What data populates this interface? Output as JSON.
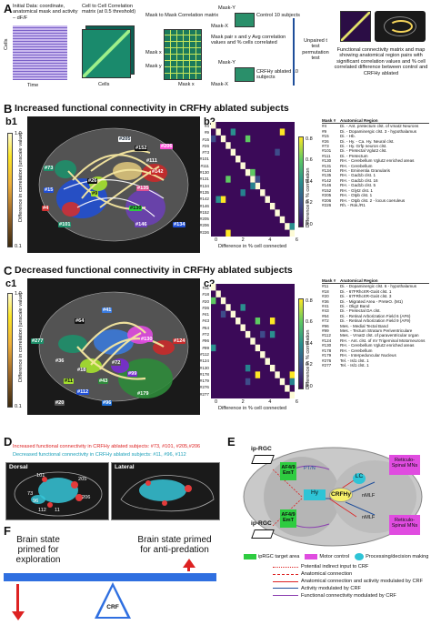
{
  "panelA": {
    "letter": "A",
    "step1": "Initial Data: coordinate, anatomical mask and activity – dF/F",
    "step2": "Cell to Cell Correlation matrix (at 0.5 threshold)",
    "step3": "Mask to Mask Correlation matrix",
    "step4": "Mask pair x and y Avg correlation values and % cells correlated",
    "step5": "Unpaired t test permutation test",
    "control": "Control 10 subjects",
    "ablated": "CRFHy ablated 10 subjects",
    "result": "Functional connectivity matrix and map showing anatomical region pairs with significant correlation values and % cell correlated difference between control and CRFHy ablated",
    "axis_cells": "Cells",
    "axis_time": "Time",
    "mask_x": "Mask x",
    "mask_y": "Mask y",
    "maskX": "Mask-X",
    "maskY": "Mask-Y"
  },
  "panelB": {
    "letter": "B",
    "title": "Increased functional connectivity in CRFHy ablated subjects",
    "b1": "b1",
    "b2": "b2",
    "cbar_top": "1.0",
    "cbar_bot": "0.1",
    "cbar_label": "Difference in correlation (unscale value)",
    "roi": [
      "#205",
      "#152",
      "#206",
      "#73",
      "#111",
      "#142",
      "#26",
      "#15",
      "#9",
      "#135",
      "#4",
      "#130",
      "#101",
      "#146",
      "#134"
    ],
    "heat_xlabel": "Difference in % cell connected",
    "heat_ylabel": "Difference in % correlation",
    "heat_ticks_x": [
      "0",
      "2",
      "4",
      "6"
    ],
    "heat_ticks_y": [
      "0.8",
      "0.6",
      "0.4",
      "0.2",
      "0.0"
    ],
    "row_labels": [
      "#4",
      "#9",
      "#15",
      "#26",
      "#73",
      "#101",
      "#111",
      "#130",
      "#131",
      "#134",
      "#135",
      "#142",
      "#146",
      "#152",
      "#205",
      "#206",
      "#226"
    ],
    "table_header_k": "Mask #",
    "table_header_v": "Anatomical Region",
    "table": [
      [
        "#4",
        "Di. - Ant. pretectum clst. of vmat2 Neurons"
      ],
      [
        "#9",
        "Di. - Dopaminergic clst. 3 - hypothalamus"
      ],
      [
        "#15",
        "Di. - Hb."
      ],
      [
        "#26",
        "Di. - Hy. - Ca. Hy. Neural clst."
      ],
      [
        "#73",
        "Di. - Hy. Grfp neuron clst."
      ],
      [
        "#101",
        "Di. - Pretectal Vglut2 clst."
      ],
      [
        "#111",
        "Di. - Pretectum"
      ],
      [
        "#130",
        "RH. - Cerebellum Vglut2 enriched areas"
      ],
      [
        "#131",
        "RH. - Cerebellum"
      ],
      [
        "#134",
        "RH. - Eminentia Granularis"
      ],
      [
        "#135",
        "RH. - Gad1b clst. 1"
      ],
      [
        "#142",
        "RH. - Gad1b clst. 16"
      ],
      [
        "#146",
        "RH. - Gad1b clst. 5"
      ],
      [
        "#152",
        "RH. - Glyt2 clst. 1"
      ],
      [
        "#205",
        "RH. - Otpb clst. 1"
      ],
      [
        "#206",
        "RH. - Otpb clst. 2 - locus coeruleus"
      ],
      [
        "#226",
        "Rh. - Rok./R1"
      ]
    ]
  },
  "panelC": {
    "letter": "C",
    "title": "Decreased functional connectivity in CRFHy ablated subjects",
    "c1": "c1",
    "c2": "c2",
    "roi": [
      "#41",
      "#64",
      "#130",
      "#124",
      "#277",
      "#36",
      "#18",
      "#72",
      "#99",
      "#43",
      "#11",
      "#112",
      "#179",
      "#96",
      "#20"
    ],
    "row_labels": [
      "#11",
      "#18",
      "#20",
      "#36",
      "#41",
      "#43",
      "#64",
      "#72",
      "#96",
      "#99",
      "#112",
      "#124",
      "#130",
      "#178",
      "#179",
      "#276",
      "#277"
    ],
    "table": [
      [
        "#11",
        "Di. - Dopaminergic clst. 6 - hypothalamus"
      ],
      [
        "#18",
        "Di. - 67FRhcrtR-Gal4 clst. 1"
      ],
      [
        "#20",
        "Di. - 67FRhcrtR-Gal4 clst. 3"
      ],
      [
        "#36",
        "Di. - Migrated Area - PreteO. (M1)"
      ],
      [
        "#41",
        "Di. - Olig2 Band"
      ],
      [
        "#43",
        "Di. - Pretectal DA clst."
      ],
      [
        "#64",
        "Di. - Retinal Arborization Field 6 (AF6)"
      ],
      [
        "#72",
        "Di. - Retinal Arborization Field 9 (AF9)"
      ],
      [
        "#96",
        "Mes. - Medial Tectal Band"
      ],
      [
        "#99",
        "Mes. - Tectum Stratum Periventriculare"
      ],
      [
        "#112",
        "Mes. - Vmat2 clst. of paraventricular organ"
      ],
      [
        "#124",
        "RH. - Ant. clst. of nV Trigeminal Motorneurons"
      ],
      [
        "#130",
        "RH. - Cerebellum Vglut2 enriched areas"
      ],
      [
        "#178",
        "RH. - Cerebellum"
      ],
      [
        "#179",
        "RH. - Interpeduncular Nucleus"
      ],
      [
        "#276",
        "Tel. - Isl1 clst. 1"
      ],
      [
        "#277",
        "Tel. - Isl1 clst. 1"
      ]
    ]
  },
  "panelD": {
    "letter": "D",
    "line1": "Increased functional connectivity in CRFHy ablated subjects: #73, #101, #205,#206",
    "line2": "Decreased functional connectivity in CRFHy ablated subjects: #11, #96, #112",
    "dorsal": "Dorsal",
    "lateral": "Lateral",
    "labels": [
      "101",
      "73",
      "96",
      "112",
      "11",
      "205",
      "206"
    ]
  },
  "panelE": {
    "letter": "E",
    "iprgc_top": "ip-RGC",
    "iprgc_bot": "ip-RGC",
    "af49_top": "AF4/9 EmT",
    "af49_bot": "AF4/9 EmT",
    "crf": "CRFHy",
    "hy": "Hy",
    "lc": "LC",
    "nmlf_top": "nMLF",
    "nmlf_bot": "nMLF",
    "rs_top": "Reticulo-Spinal MNs",
    "rs_bot": "Reticulo-Spinal MNs",
    "ptn": "PT/N",
    "legend": [
      {
        "label": "ipRGC target area",
        "color": "#2ecc40"
      },
      {
        "label": "Motor control",
        "color": "#e04ce0"
      },
      {
        "label": "Processing/decision making",
        "color": "#2ec4d6"
      }
    ],
    "arrows": [
      {
        "label": "Potential indirect input to CRF",
        "color": "#d22",
        "style": "dotted"
      },
      {
        "label": "Anatomical connection",
        "color": "#d22",
        "style": "dashed"
      },
      {
        "label": "Anatomical connection and activity modulated by CRF",
        "color": "#d22",
        "style": "solid"
      },
      {
        "label": "Activity modulated by CRF",
        "color": "#1f4e9a",
        "style": "solid"
      },
      {
        "label": "Functional connectivity modulated by CRF",
        "color": "#8b3fb0",
        "style": "solid"
      }
    ]
  },
  "panelF": {
    "letter": "F",
    "left": "Brain state primed for exploration",
    "right": "Brain state primed for anti-predation",
    "fulcrum": "CRF"
  }
}
